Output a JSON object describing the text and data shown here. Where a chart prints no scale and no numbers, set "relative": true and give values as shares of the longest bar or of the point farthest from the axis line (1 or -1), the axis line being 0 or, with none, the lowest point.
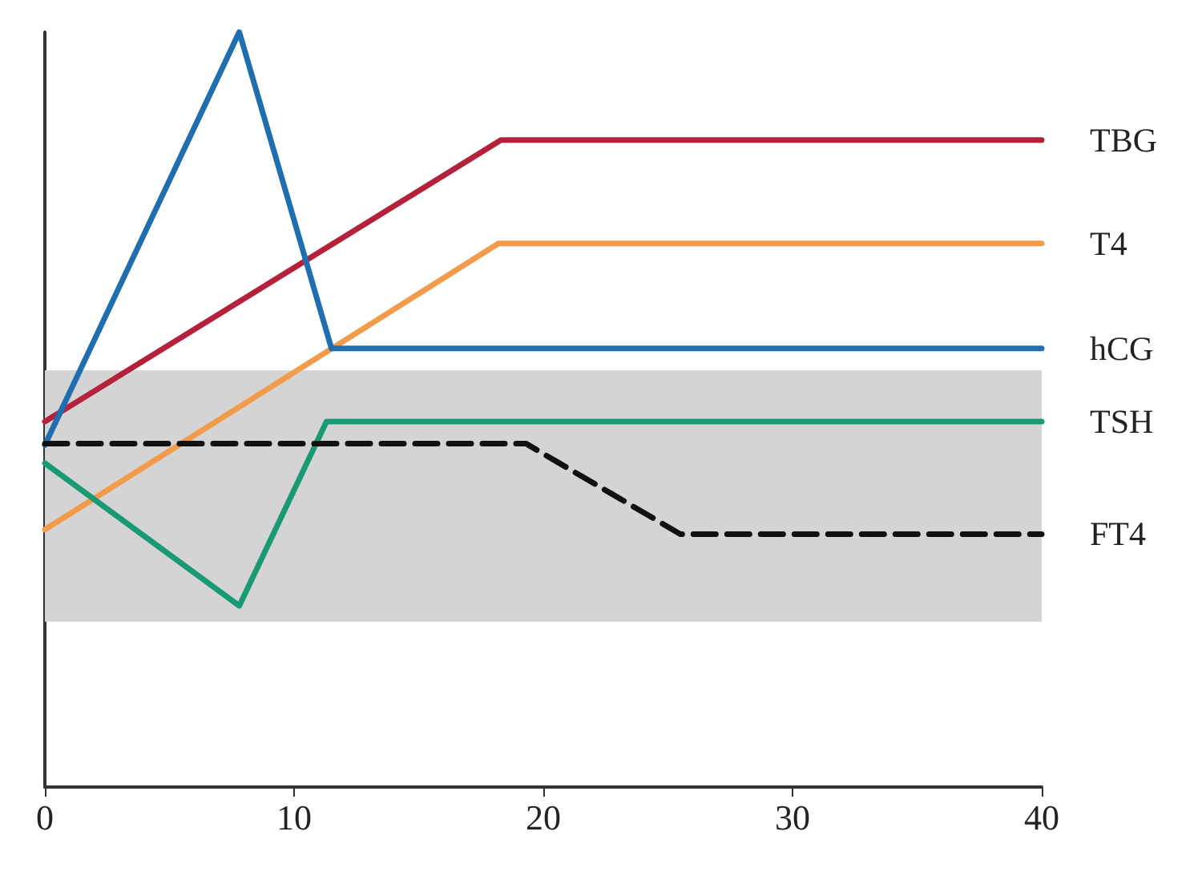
{
  "chart_data": {
    "type": "line",
    "relative": true,
    "xlim": [
      0,
      40
    ],
    "xticks": [
      0,
      10,
      20,
      30,
      40
    ],
    "grid": false,
    "legend": false,
    "marker": "none",
    "line_style": "solid",
    "bands": [
      {
        "axis": "y",
        "from": 0.219,
        "to": 0.552,
        "color": "#d4d4d4"
      }
    ],
    "series": [
      {
        "name": "TBG",
        "color": "#b5203a",
        "x": [
          0,
          18.3,
          40
        ],
        "values": [
          0.484,
          0.857,
          0.857
        ]
      },
      {
        "name": "T4",
        "color": "#f29b4a",
        "x": [
          0,
          18.2,
          40
        ],
        "values": [
          0.341,
          0.72,
          0.72
        ]
      },
      {
        "name": "hCG",
        "color": "#1f6fb0",
        "x": [
          0,
          7.8,
          11.5,
          40
        ],
        "values": [
          0.453,
          1,
          0.581,
          0.581
        ]
      },
      {
        "name": "TSH",
        "color": "#1a9a74",
        "x": [
          0,
          7.8,
          11.3,
          40
        ],
        "values": [
          0.429,
          0.24,
          0.484,
          0.484
        ]
      },
      {
        "name": "FT4",
        "color": "#111111",
        "line_style": "dashed",
        "x": [
          0,
          19.3,
          25.5,
          40
        ],
        "values": [
          0.455,
          0.455,
          0.335,
          0.335
        ]
      }
    ]
  }
}
